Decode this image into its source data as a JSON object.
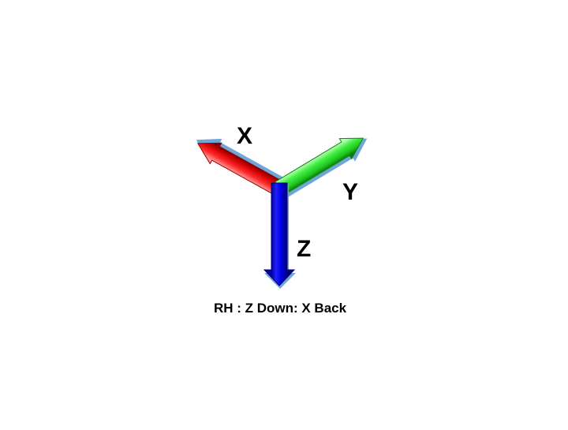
{
  "diagram": {
    "axes": [
      {
        "id": "x",
        "label": "X",
        "color": "#e81010"
      },
      {
        "id": "y",
        "label": "Y",
        "color": "#22dd22"
      },
      {
        "id": "z",
        "label": "Z",
        "color": "#0a10e8"
      }
    ],
    "caption": "RH : Z Down: X Back"
  }
}
